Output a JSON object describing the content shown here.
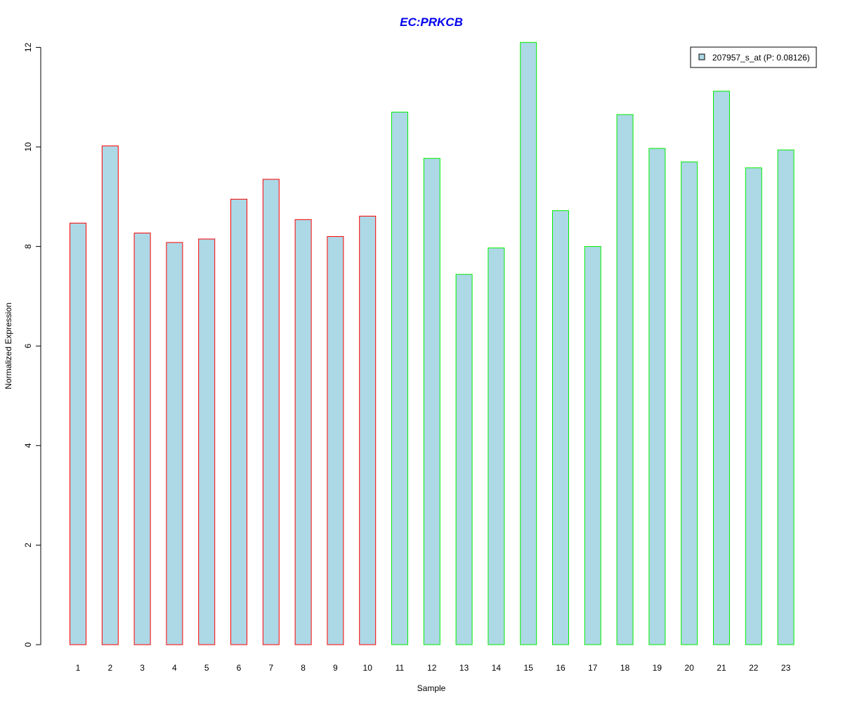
{
  "chart_data": {
    "type": "bar",
    "title": "EC:PRKCB",
    "title_color": "#0000EE",
    "xlabel": "Sample",
    "ylabel": "Normalized Expression",
    "categories": [
      "1",
      "2",
      "3",
      "4",
      "5",
      "6",
      "7",
      "8",
      "9",
      "10",
      "11",
      "12",
      "13",
      "14",
      "15",
      "16",
      "17",
      "18",
      "19",
      "20",
      "21",
      "22",
      "23"
    ],
    "series": [
      {
        "name": "207957_s_at (P: 0.08126)",
        "values": [
          8.47,
          10.02,
          8.27,
          8.08,
          8.15,
          8.95,
          9.35,
          8.54,
          8.2,
          8.61,
          10.7,
          9.77,
          7.44,
          7.97,
          12.1,
          8.72,
          8.0,
          10.65,
          9.97,
          9.7,
          11.12,
          9.58,
          9.94
        ],
        "fill": "#ADD8E6"
      }
    ],
    "groups": [
      {
        "samples": [
          1,
          2,
          3,
          4,
          5,
          6,
          7,
          8,
          9,
          10
        ],
        "border_color": "#FF0000"
      },
      {
        "samples": [
          11,
          12,
          13,
          14,
          15,
          16,
          17,
          18,
          19,
          20,
          21,
          22,
          23
        ],
        "border_color": "#00EE00"
      }
    ],
    "yticks": [
      0,
      2,
      4,
      6,
      8,
      10,
      12
    ],
    "ylim": [
      0,
      12.1
    ],
    "legend_position": "top-right",
    "grid": false
  }
}
